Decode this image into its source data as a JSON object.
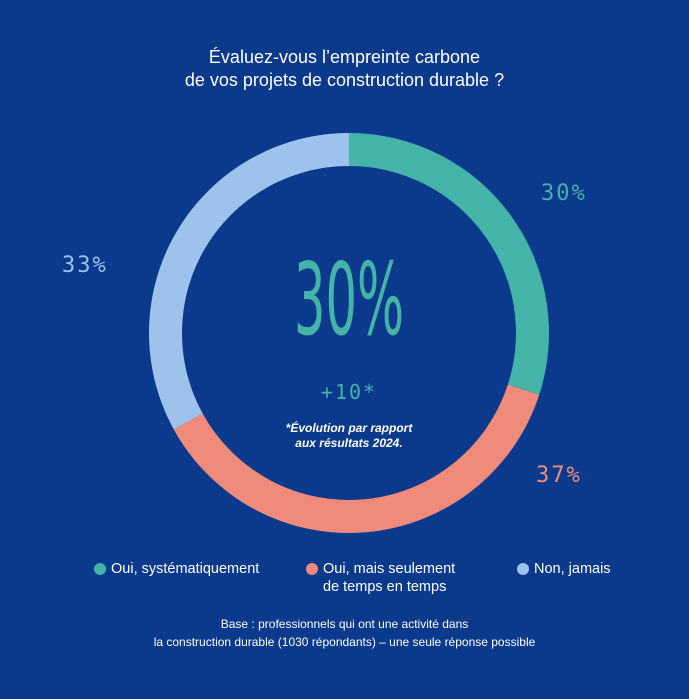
{
  "title": {
    "line1": "Évaluez-vous l’empreinte carbone",
    "line2": "de vos projets de construction durable ?"
  },
  "center": {
    "value": "30%",
    "delta": "+10*",
    "note_line1": "*Évolution par rapport",
    "note_line2": "aux résultats 2024."
  },
  "footnote": {
    "line1": "Base : professionnels qui ont une activité dans",
    "line2": "la construction durable (1030 répondants) – une seule réponse possible"
  },
  "chart_data": {
    "type": "pie",
    "variant": "donut",
    "categories": [
      "Oui, systématiquement",
      "Oui, mais seulement de temps en temps",
      "Non, jamais"
    ],
    "values": [
      30,
      37,
      33
    ],
    "labels": [
      "30%",
      "37%",
      "33%"
    ],
    "colors": [
      "#44b3a8",
      "#f08a7a",
      "#9dc3ec"
    ],
    "legend": [
      {
        "label": "Oui, systématiquement",
        "color": "#44b3a8"
      },
      {
        "label": "Oui, mais seulement\nde temps en temps",
        "color": "#f08a7a"
      },
      {
        "label": "Non, jamais",
        "color": "#9dc3ec"
      }
    ],
    "legend_position": "bottom",
    "start_angle": "top",
    "direction": "clockwise"
  },
  "colors": {
    "background": "#0b3a8c",
    "text": "#ffffff"
  }
}
